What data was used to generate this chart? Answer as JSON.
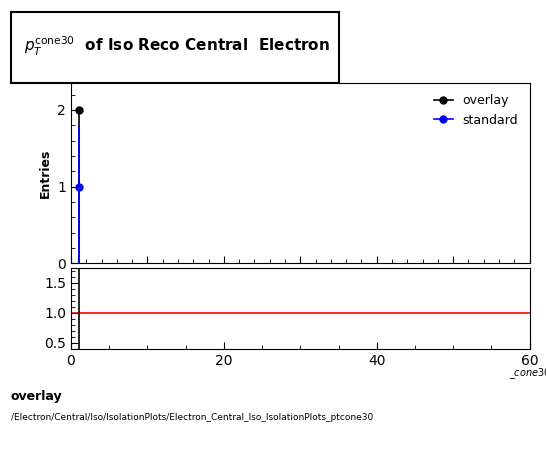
{
  "overlay_x": [
    1.0
  ],
  "overlay_y": [
    2.0
  ],
  "overlay_yerr_low": [
    2.0
  ],
  "overlay_yerr_high": [
    0.0
  ],
  "standard_x": [
    1.0
  ],
  "standard_y": [
    1.0
  ],
  "standard_yerr_low": [
    1.0
  ],
  "standard_yerr_high": [
    0.8
  ],
  "overlay_color": "black",
  "standard_color": "blue",
  "xmin": 0,
  "xmax": 60,
  "ymin": 0,
  "ymax": 2.35,
  "yticks_main": [
    0,
    1,
    2
  ],
  "ylabel": "Entries",
  "ratio_ymin": 0.4,
  "ratio_ymax": 1.75,
  "ratio_yticks": [
    0.5,
    1.0,
    1.5
  ],
  "xticks": [
    0,
    20,
    40,
    60
  ],
  "footer_line1": "overlay",
  "footer_line2": "/Electron/Central/Iso/IsolationPlots/Electron_Central_Iso_IsolationPlots_ptcone30",
  "bg_color": "white"
}
